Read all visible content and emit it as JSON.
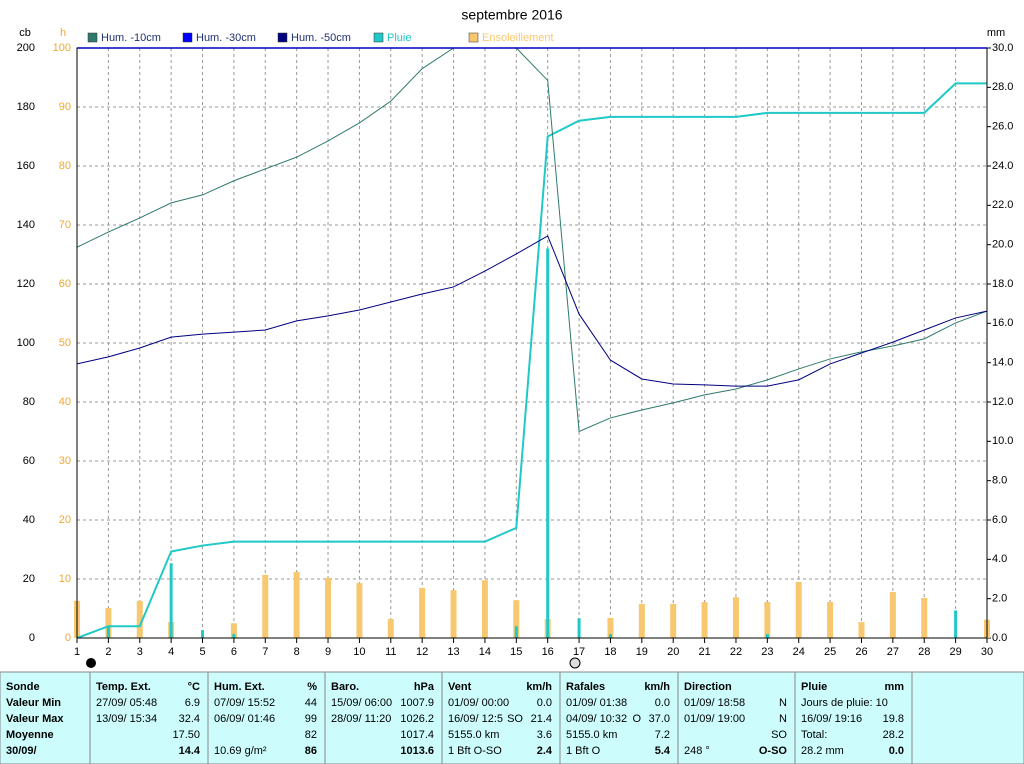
{
  "chart_data": {
    "type": "line",
    "title": "septembre 2016",
    "ylabel": "cb",
    "y2label": "mm",
    "y3label": "h",
    "x": [
      1,
      2,
      3,
      4,
      5,
      6,
      7,
      8,
      9,
      10,
      11,
      12,
      13,
      14,
      15,
      16,
      17,
      18,
      19,
      20,
      21,
      22,
      23,
      24,
      25,
      26,
      27,
      28,
      29,
      30
    ],
    "xlim": [
      1,
      30
    ],
    "xticks": [
      1,
      2,
      3,
      4,
      5,
      6,
      7,
      8,
      9,
      10,
      11,
      12,
      13,
      14,
      15,
      16,
      17,
      18,
      19,
      20,
      21,
      22,
      23,
      24,
      25,
      26,
      27,
      28,
      29,
      30
    ],
    "ylim": [
      0,
      200
    ],
    "yticks": [
      0,
      20,
      40,
      60,
      80,
      100,
      120,
      140,
      160,
      180,
      200
    ],
    "y2lim": [
      0,
      30
    ],
    "y2ticks": [
      {
        "value": 0,
        "label": "0.0"
      },
      {
        "value": 2,
        "label": "2.0"
      },
      {
        "value": 4,
        "label": "4.0"
      },
      {
        "value": 6,
        "label": "6.0"
      },
      {
        "value": 8,
        "label": "8.0"
      },
      {
        "value": 10,
        "label": "10.0"
      },
      {
        "value": 12,
        "label": "12.0"
      },
      {
        "value": 14,
        "label": "14.0"
      },
      {
        "value": 16,
        "label": "16.0"
      },
      {
        "value": 18,
        "label": "18.0"
      },
      {
        "value": 20,
        "label": "20.0"
      },
      {
        "value": 22,
        "label": "22.0"
      },
      {
        "value": 24,
        "label": "24.0"
      },
      {
        "value": 26,
        "label": "26.0"
      },
      {
        "value": 28,
        "label": "28.0"
      },
      {
        "value": 30,
        "label": "30.0"
      }
    ],
    "y3lim": [
      0,
      100
    ],
    "y3ticks": [
      0,
      10,
      20,
      30,
      40,
      50,
      60,
      70,
      80,
      90,
      100
    ],
    "grid": true,
    "series": [
      {
        "name": "Hum. -10cm",
        "color": "#2f7a6e",
        "values": [
          132.5,
          137.6,
          142.4,
          147.5,
          150.2,
          155,
          159,
          163,
          168.5,
          174.6,
          182,
          193,
          200,
          200,
          200,
          189,
          70,
          74.6,
          77.3,
          79.7,
          82.4,
          84.4,
          87.5,
          91.2,
          94.6,
          97,
          99,
          101.4,
          106.8,
          110.8
        ]
      },
      {
        "name": "Hum. -30cm",
        "color": "#0000ff",
        "values": [
          null,
          null,
          null,
          null,
          null,
          null,
          null,
          null,
          null,
          null,
          null,
          null,
          null,
          null,
          null,
          null,
          null,
          null,
          null,
          null,
          null,
          null,
          null,
          null,
          null,
          null,
          null,
          null,
          null,
          null
        ]
      },
      {
        "name": "Hum. -50cm",
        "color": "#000080",
        "values": [
          92.9,
          95.3,
          98.3,
          102,
          103,
          103.7,
          104.4,
          107.5,
          109.2,
          111.2,
          113.9,
          116.6,
          119,
          124.4,
          130.2,
          136.3,
          109.8,
          94.2,
          87.8,
          86.1,
          85.8,
          85.4,
          85.4,
          87.5,
          92.9,
          96.6,
          100.3,
          104.4,
          108.5,
          110.8
        ]
      },
      {
        "name": "Pluie",
        "color": "#20c8c8",
        "axis": "y2",
        "values": [
          0,
          0.6,
          0.6,
          4.4,
          4.7,
          4.9,
          4.9,
          4.9,
          4.9,
          4.9,
          4.9,
          4.9,
          4.9,
          4.9,
          5.6,
          25.5,
          26.3,
          26.5,
          26.5,
          26.5,
          26.5,
          26.5,
          26.7,
          26.7,
          26.7,
          26.7,
          26.7,
          26.7,
          28.2,
          28.2
        ],
        "daily": [
          0,
          0.6,
          0,
          3.8,
          0.4,
          0.2,
          0,
          0,
          0,
          0,
          0,
          0,
          0,
          0,
          0.6,
          19.8,
          1,
          0.2,
          0,
          0,
          0,
          0,
          0.2,
          0,
          0,
          0,
          0,
          0,
          1.4,
          0
        ]
      },
      {
        "name": "Ensoleillement",
        "color": "#f8c870",
        "axis": "y3",
        "type": "bar",
        "values": [
          6.3,
          5.1,
          6.3,
          2.7,
          0,
          2.5,
          10.7,
          11.2,
          10.2,
          9.3,
          3.2,
          8.5,
          8.1,
          9.8,
          6.4,
          3.2,
          0,
          3.4,
          5.8,
          5.8,
          6.1,
          6.9,
          6.1,
          9.5,
          6.1,
          2.7,
          7.8,
          6.8,
          0,
          3.1
        ]
      }
    ]
  },
  "table": {
    "columns": [
      {
        "header": "Sonde",
        "unit": "",
        "rows": [
          [
            "Valeur Min"
          ],
          [
            "Valeur Max"
          ],
          [
            "Moyenne"
          ],
          [
            "30/09/"
          ]
        ]
      },
      {
        "header": "Temp. Ext.",
        "unit": "°C",
        "rows": [
          [
            "27/09/ 05:48",
            "6.9"
          ],
          [
            "13/09/ 15:34",
            "32.4"
          ],
          [
            "",
            "17.50"
          ],
          [
            "",
            "14.4"
          ]
        ]
      },
      {
        "header": "Hum. Ext.",
        "unit": "%",
        "rows": [
          [
            "07/09/ 15:52",
            "44"
          ],
          [
            "06/09/ 01:46",
            "99"
          ],
          [
            "",
            "82"
          ],
          [
            "10.69 g/m²",
            "86"
          ]
        ]
      },
      {
        "header": "Baro.",
        "unit": "hPa",
        "rows": [
          [
            "15/09/ 06:00",
            "1007.9"
          ],
          [
            "28/09/ 11:20",
            "1026.2"
          ],
          [
            "",
            "1017.4"
          ],
          [
            "",
            "1013.6"
          ]
        ]
      },
      {
        "header": "Vent",
        "unit": "km/h",
        "rows": [
          [
            "01/09/ 00:00",
            "0.0"
          ],
          [
            "16/09/ 12:5",
            "21.4",
            "SO"
          ],
          [
            "5155.0 km",
            "3.6"
          ],
          [
            "1 Bft O-SO",
            "2.4"
          ]
        ]
      },
      {
        "header": "Rafales",
        "unit": "km/h",
        "rows": [
          [
            "01/09/ 01:38",
            "0.0"
          ],
          [
            "04/09/ 10:32",
            "37.0",
            "O"
          ],
          [
            "5155.0 km",
            "7.2"
          ],
          [
            "1 Bft O",
            "5.4"
          ]
        ]
      },
      {
        "header": "Direction",
        "unit": "",
        "rows": [
          [
            "01/09/ 18:58",
            "N"
          ],
          [
            "01/09/ 19:00",
            "N"
          ],
          [
            "",
            "SO"
          ],
          [
            "248 °",
            "O-SO"
          ]
        ]
      },
      {
        "header": "Pluie",
        "unit": "mm",
        "rows": [
          [
            "Jours de pluie: 10",
            ""
          ],
          [
            "16/09/ 19:16",
            "19.8"
          ],
          [
            "Total:",
            "28.2"
          ],
          [
            "28.2 mm",
            "0.0"
          ]
        ]
      }
    ]
  }
}
